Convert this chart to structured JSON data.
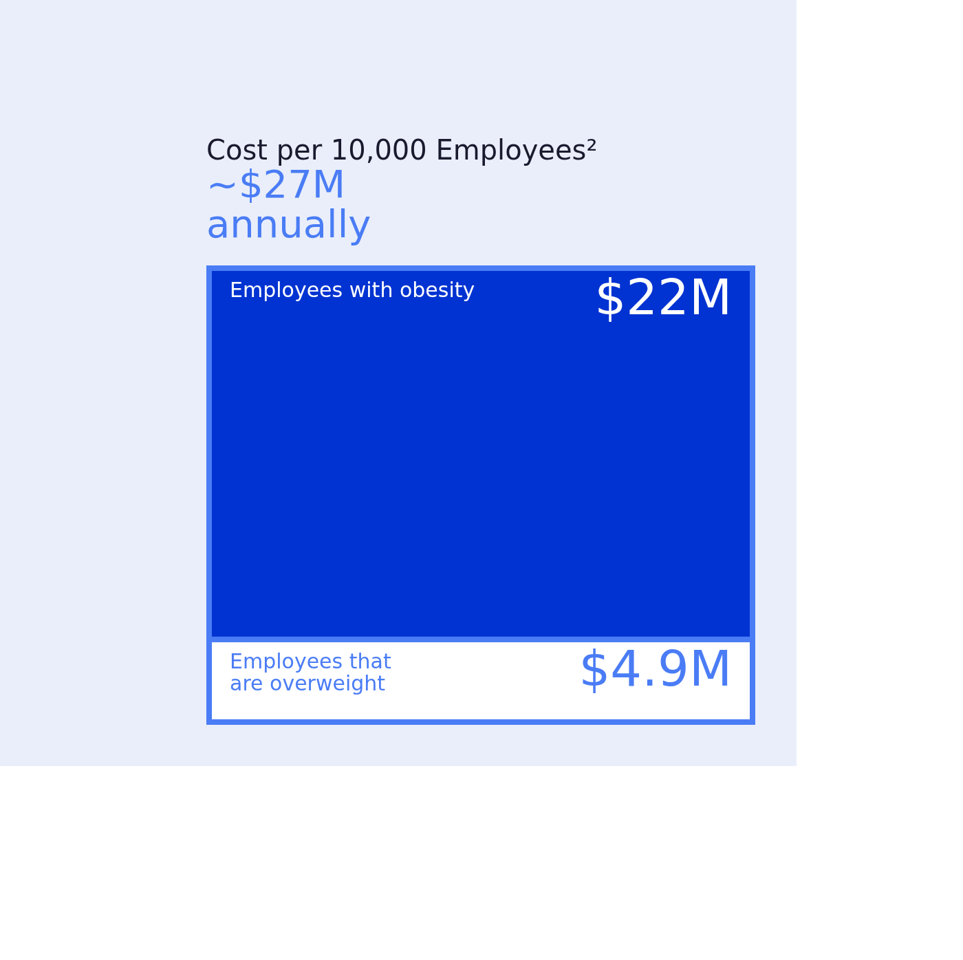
{
  "chart_data": {
    "type": "bar",
    "stacked": true,
    "title": "Cost per 10,000 Employees²",
    "subtitle": "~$27M",
    "annotations": [
      "annually"
    ],
    "categories": [
      null
    ],
    "tick_labels": false,
    "series": [
      {
        "name": "Employees that\nare overweight",
        "color": "#ffffff",
        "values": [
          4.9
        ],
        "value_labels": [
          "$4.9M"
        ]
      },
      {
        "name": "Employees with obesity",
        "color": "#0033d1",
        "values": [
          22
        ],
        "value_labels": [
          "$22M"
        ]
      }
    ]
  }
}
